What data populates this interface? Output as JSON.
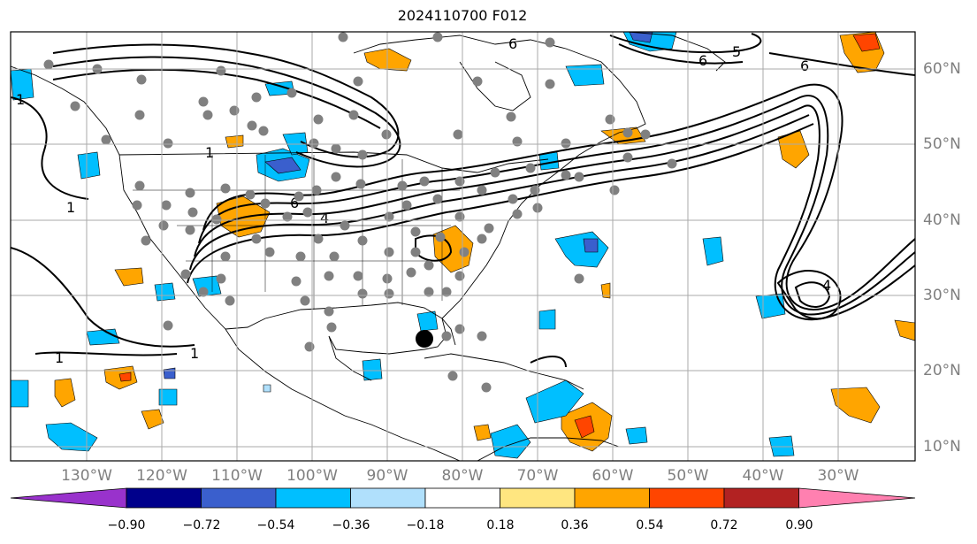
{
  "title": "2024110700 F012",
  "longitude_labels": [
    "130°W",
    "120°W",
    "110°W",
    "100°W",
    "90°W",
    "80°W",
    "70°W",
    "60°W",
    "50°W",
    "40°W",
    "30°W"
  ],
  "latitude_labels": [
    "60°N",
    "50°N",
    "40°N",
    "30°N",
    "20°N",
    "10°N"
  ],
  "colorbar": {
    "ticks": [
      "−0.90",
      "−0.72",
      "−0.54",
      "−0.36",
      "−0.18",
      "0.18",
      "0.36",
      "0.54",
      "0.72",
      "0.90"
    ],
    "colors": [
      "#9932cc",
      "#00008b",
      "#3a5fcd",
      "#00bfff",
      "#b0e0fc",
      "#ffffff",
      "#ffe680",
      "#ffa500",
      "#ff4500",
      "#b22222",
      "#ff80b0"
    ]
  },
  "colors": {
    "grid": "#aaaaaa",
    "station": "#808080",
    "marker": "#000000",
    "contour": "#000000"
  },
  "contour_labels": [
    "6",
    "5",
    "6",
    "1",
    "1",
    "1",
    "1",
    "6",
    "4",
    "4",
    "6",
    "1"
  ]
}
